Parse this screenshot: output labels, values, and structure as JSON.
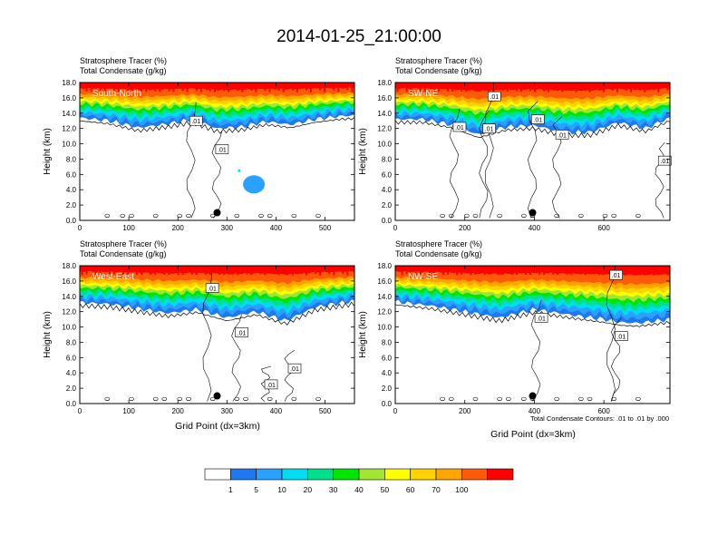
{
  "figure": {
    "title": "2014-01-25_21:00:00",
    "xlabel": "Grid Point (dx=3km)",
    "ylabel": "Height (km)",
    "header_line1": "Stratosphere Tracer   (%)",
    "header_line2": "Total Condensate   (g/kg)",
    "contour_note": "Total Condensate Contours: .01 to .01 by .000",
    "contour_label": ".01",
    "colors": {
      "background": "#ffffff",
      "contour": "#000000",
      "point_marker": "#000000",
      "panel_label": "#ffffff"
    }
  },
  "colorbar": {
    "colors": [
      "#ffffff",
      "#1e78f0",
      "#2aa0ff",
      "#00dcf0",
      "#00e08c",
      "#00e600",
      "#a0e632",
      "#ffff00",
      "#ffd200",
      "#ffa500",
      "#ff5a0a",
      "#ff0000"
    ],
    "labels": [
      "1",
      "5",
      "10",
      "20",
      "30",
      "40",
      "50",
      "60",
      "70",
      "100"
    ]
  },
  "chart_data": [
    {
      "type": "heatmap",
      "title": "South-North",
      "xlabel": "Grid Point (dx=3km)",
      "ylabel": "Height (km)",
      "xlim": [
        0,
        560
      ],
      "ylim": [
        0,
        18
      ],
      "xticks": [
        0,
        100,
        200,
        300,
        400,
        500
      ],
      "yticks": [
        0,
        2,
        4,
        6,
        8,
        10,
        12,
        14,
        16,
        18
      ],
      "ytick_labels": [
        "0.0",
        "2.0",
        "4.0",
        "6.0",
        "8.0",
        "10.0",
        "12.0",
        "14.0",
        "16.0",
        "18.0"
      ],
      "tracer_profile": {
        "x": [
          0,
          60,
          120,
          180,
          230,
          280,
          330,
          380,
          430,
          480,
          530,
          560
        ],
        "bottom_km": [
          13.4,
          13.0,
          12.1,
          12.6,
          13.2,
          12.0,
          12.2,
          12.9,
          12.5,
          13.2,
          13.6,
          13.7
        ]
      },
      "condensate_blobs": [
        {
          "x": 355,
          "y": 4.7,
          "label": ""
        },
        {
          "x": 325,
          "y": 6.5,
          "label": ""
        }
      ],
      "contour_labels": [
        {
          "x": 237,
          "y": 13.0,
          "text": ".01"
        },
        {
          "x": 290,
          "y": 9.3,
          "text": ".01"
        }
      ],
      "point": {
        "x": 280,
        "y": 1.0
      }
    },
    {
      "type": "heatmap",
      "title": "SW-NE",
      "xlabel": "Grid Point (dx=3km)",
      "ylabel": "Height (km)",
      "xlim": [
        0,
        790
      ],
      "ylim": [
        0,
        18
      ],
      "xticks": [
        0,
        200,
        400,
        600
      ],
      "yticks": [
        0,
        2,
        4,
        6,
        8,
        10,
        12,
        14,
        16,
        18
      ],
      "ytick_labels": [
        "0.0",
        "2.0",
        "4.0",
        "6.0",
        "8.0",
        "10.0",
        "12.0",
        "14.0",
        "16.0",
        "18.0"
      ],
      "tracer_profile": {
        "x": [
          0,
          80,
          160,
          240,
          320,
          400,
          480,
          560,
          640,
          720,
          790
        ],
        "bottom_km": [
          13.2,
          13.2,
          12.5,
          11.2,
          12.2,
          12.4,
          11.5,
          11.5,
          12.8,
          12.0,
          13.4
        ]
      },
      "contour_labels": [
        {
          "x": 285,
          "y": 16.2,
          "text": ".01"
        },
        {
          "x": 185,
          "y": 12.2,
          "text": ".01"
        },
        {
          "x": 270,
          "y": 12.0,
          "text": ".01"
        },
        {
          "x": 410,
          "y": 13.2,
          "text": ".01"
        },
        {
          "x": 480,
          "y": 11.2,
          "text": ".01"
        },
        {
          "x": 775,
          "y": 7.8,
          "text": ".01"
        }
      ],
      "point": {
        "x": 395,
        "y": 1.0
      }
    },
    {
      "type": "heatmap",
      "title": "West-East",
      "xlabel": "Grid Point (dx=3km)",
      "ylabel": "Height (km)",
      "xlim": [
        0,
        560
      ],
      "ylim": [
        0,
        18
      ],
      "xticks": [
        0,
        100,
        200,
        300,
        400,
        500
      ],
      "yticks": [
        0,
        2,
        4,
        6,
        8,
        10,
        12,
        14,
        16,
        18
      ],
      "ytick_labels": [
        "0.0",
        "2.0",
        "4.0",
        "6.0",
        "8.0",
        "10.0",
        "12.0",
        "14.0",
        "16.0",
        "18.0"
      ],
      "tracer_profile": {
        "x": [
          0,
          60,
          120,
          180,
          240,
          300,
          360,
          420,
          480,
          560
        ],
        "bottom_km": [
          13.2,
          13.0,
          12.4,
          11.8,
          12.3,
          11.2,
          12.0,
          10.8,
          12.6,
          13.4
        ]
      },
      "contour_labels": [
        {
          "x": 270,
          "y": 15.1,
          "text": ".01"
        },
        {
          "x": 330,
          "y": 9.3,
          "text": ".01"
        },
        {
          "x": 438,
          "y": 4.6,
          "text": ".01"
        },
        {
          "x": 390,
          "y": 2.5,
          "text": ".01"
        }
      ],
      "point": {
        "x": 280,
        "y": 1.0
      }
    },
    {
      "type": "heatmap",
      "title": "NW-SE",
      "xlabel": "Grid Point (dx=3km)",
      "ylabel": "Height (km)",
      "xlim": [
        0,
        790
      ],
      "ylim": [
        0,
        18
      ],
      "xticks": [
        0,
        200,
        400,
        600
      ],
      "yticks": [
        0,
        2,
        4,
        6,
        8,
        10,
        12,
        14,
        16,
        18
      ],
      "ytick_labels": [
        "0.0",
        "2.0",
        "4.0",
        "6.0",
        "8.0",
        "10.0",
        "12.0",
        "14.0",
        "16.0",
        "18.0"
      ],
      "tracer_profile": {
        "x": [
          0,
          100,
          200,
          300,
          400,
          500,
          600,
          650,
          700,
          790
        ],
        "bottom_km": [
          13.3,
          12.8,
          12.0,
          11.2,
          12.3,
          11.6,
          11.0,
          10.6,
          10.5,
          11.0
        ]
      },
      "contour_labels": [
        {
          "x": 635,
          "y": 16.8,
          "text": ".01"
        },
        {
          "x": 420,
          "y": 11.2,
          "text": ".01"
        },
        {
          "x": 650,
          "y": 8.8,
          "text": ".01"
        }
      ],
      "point": {
        "x": 395,
        "y": 1.0
      }
    }
  ]
}
